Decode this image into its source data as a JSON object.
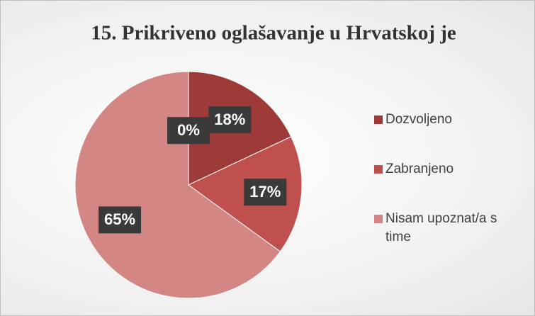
{
  "chart_data": {
    "type": "pie",
    "title": "15. Prikriveno oglašavanje u Hrvatskoj je",
    "categories": [
      null,
      "Dozvoljeno",
      "Zabranjeno",
      "Nisam upoznat/a s time"
    ],
    "values": [
      0,
      18,
      17,
      65
    ],
    "value_labels": [
      "0%",
      "18%",
      "17%",
      "65%"
    ],
    "colors": [
      "#7f2b29",
      "#9e3b39",
      "#c0504d",
      "#d38684"
    ],
    "legend": "right"
  }
}
